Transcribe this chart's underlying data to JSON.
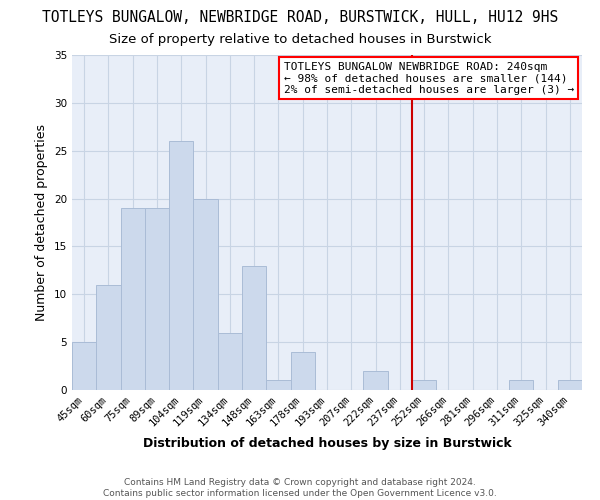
{
  "title": "TOTLEYS BUNGALOW, NEWBRIDGE ROAD, BURSTWICK, HULL, HU12 9HS",
  "subtitle": "Size of property relative to detached houses in Burstwick",
  "xlabel": "Distribution of detached houses by size in Burstwick",
  "ylabel": "Number of detached properties",
  "bar_labels": [
    "45sqm",
    "60sqm",
    "75sqm",
    "89sqm",
    "104sqm",
    "119sqm",
    "134sqm",
    "148sqm",
    "163sqm",
    "178sqm",
    "193sqm",
    "207sqm",
    "222sqm",
    "237sqm",
    "252sqm",
    "266sqm",
    "281sqm",
    "296sqm",
    "311sqm",
    "325sqm",
    "340sqm"
  ],
  "bar_heights": [
    5,
    11,
    19,
    19,
    26,
    20,
    6,
    13,
    1,
    4,
    0,
    0,
    2,
    0,
    1,
    0,
    0,
    0,
    1,
    0,
    1
  ],
  "bar_color": "#ccd9ec",
  "bar_edge_color": "#aabcd6",
  "grid_color": "#c8d4e4",
  "vline_x": 13.5,
  "vline_color": "#cc0000",
  "annotation_title": "TOTLEYS BUNGALOW NEWBRIDGE ROAD: 240sqm",
  "annotation_line2": "← 98% of detached houses are smaller (144)",
  "annotation_line3": "2% of semi-detached houses are larger (3) →",
  "ylim": [
    0,
    35
  ],
  "yticks": [
    0,
    5,
    10,
    15,
    20,
    25,
    30,
    35
  ],
  "footer1": "Contains HM Land Registry data © Crown copyright and database right 2024.",
  "footer2": "Contains public sector information licensed under the Open Government Licence v3.0.",
  "title_fontsize": 10.5,
  "subtitle_fontsize": 9.5,
  "axis_label_fontsize": 9,
  "tick_fontsize": 7.5,
  "annotation_fontsize": 8,
  "footer_fontsize": 6.5,
  "bg_color": "#e8eef8"
}
